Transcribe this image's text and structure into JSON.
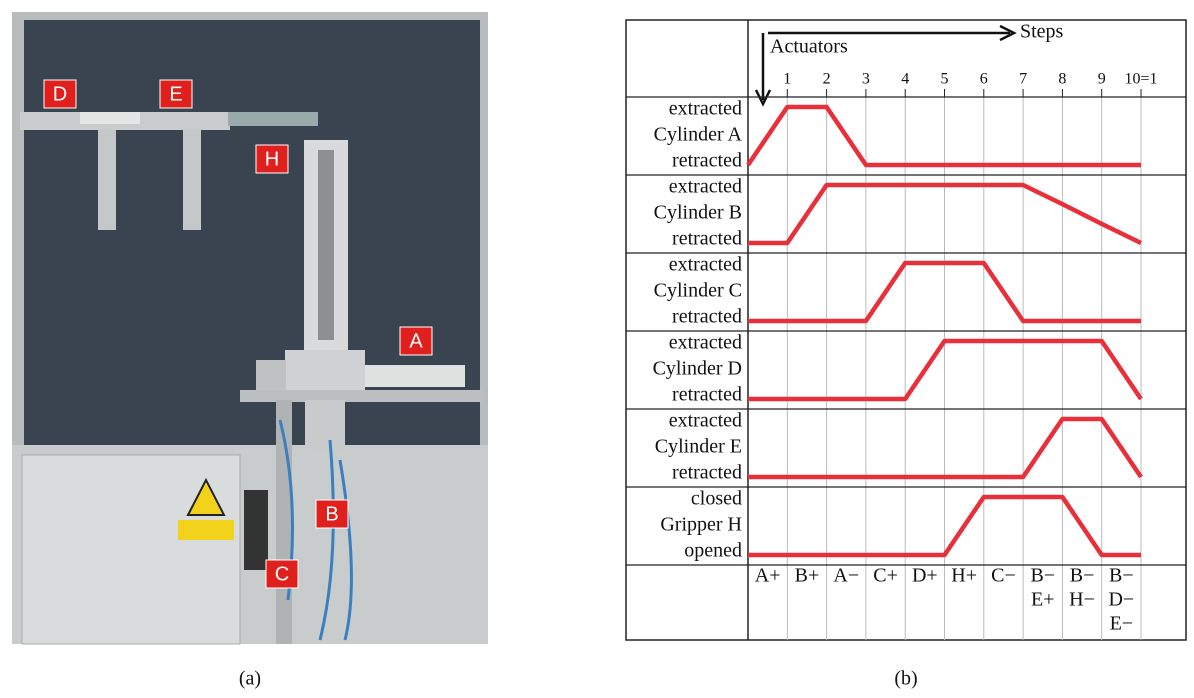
{
  "photo": {
    "labels": [
      "D",
      "E",
      "H",
      "A",
      "B",
      "C"
    ],
    "caption": "(a)"
  },
  "chart_data": {
    "type": "step-diagram",
    "caption": "(b)",
    "x_title": "Steps",
    "y_title": "Actuators",
    "x": [
      0,
      1,
      2,
      3,
      4,
      5,
      6,
      7,
      8,
      9,
      10
    ],
    "xlim": [
      0,
      10
    ],
    "xticks": [
      1,
      2,
      3,
      4,
      5,
      6,
      7,
      8,
      9,
      {
        "value": 10,
        "label": "10=1"
      }
    ],
    "ylim": [
      0,
      1
    ],
    "grid": true,
    "series": [
      {
        "name": "Cylinder A",
        "high": "extracted",
        "low": "retracted",
        "color": "#e8303a",
        "values": [
          0,
          1,
          1,
          0,
          0,
          0,
          0,
          0,
          0,
          0,
          0
        ]
      },
      {
        "name": "Cylinder B",
        "high": "extracted",
        "low": "retracted",
        "color": "#e8303a",
        "values": [
          0,
          0,
          1,
          1,
          1,
          1,
          1,
          1,
          0.67,
          0.33,
          0
        ]
      },
      {
        "name": "Cylinder C",
        "high": "extracted",
        "low": "retracted",
        "color": "#e8303a",
        "values": [
          0,
          0,
          0,
          0,
          1,
          1,
          1,
          0,
          0,
          0,
          0
        ]
      },
      {
        "name": "Cylinder D",
        "high": "extracted",
        "low": "retracted",
        "color": "#e8303a",
        "values": [
          0,
          0,
          0,
          0,
          0,
          1,
          1,
          1,
          1,
          1,
          0
        ]
      },
      {
        "name": "Cylinder E",
        "high": "extracted",
        "low": "retracted",
        "color": "#e8303a",
        "values": [
          0,
          0,
          0,
          0,
          0,
          0,
          0,
          0,
          1,
          1,
          0
        ]
      },
      {
        "name": "Gripper H",
        "high": "closed",
        "low": "opened",
        "color": "#e8303a",
        "values": [
          0,
          0,
          0,
          0,
          0,
          0,
          1,
          1,
          1,
          0,
          0
        ]
      }
    ],
    "step_labels": [
      [
        "A+"
      ],
      [
        "B+"
      ],
      [
        "A−"
      ],
      [
        "C+"
      ],
      [
        "D+"
      ],
      [
        "H+"
      ],
      [
        "C−"
      ],
      [
        "B−",
        "E+"
      ],
      [
        "B−",
        "H−"
      ],
      [
        "B−",
        "D−",
        "E−"
      ]
    ]
  }
}
